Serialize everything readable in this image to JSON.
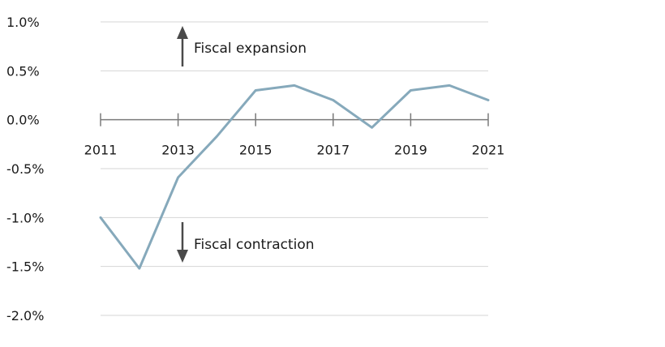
{
  "chart_data": {
    "type": "line",
    "x": [
      2011,
      2012,
      2013,
      2014,
      2015,
      2016,
      2017,
      2018,
      2019,
      2020,
      2021
    ],
    "series": [
      {
        "values": [
          -1.0,
          -1.52,
          -0.59,
          -0.17,
          0.3,
          0.35,
          0.2,
          -0.08,
          0.3,
          0.35,
          0.2
        ]
      }
    ],
    "x_tick_labels": [
      "2011",
      "2013",
      "2015",
      "2017",
      "2019",
      "2021"
    ],
    "x_tick_values": [
      2011,
      2013,
      2015,
      2017,
      2019,
      2021
    ],
    "y_tick_labels": [
      "1.0%",
      "0.5%",
      "0.0%",
      "-0.5%",
      "-1.0%",
      "-1.5%",
      "-2.0%"
    ],
    "y_tick_values": [
      1.0,
      0.5,
      0.0,
      -0.5,
      -1.0,
      -1.5,
      -2.0
    ],
    "ylim": [
      -2.0,
      1.0
    ],
    "xlim": [
      2011,
      2021
    ],
    "grid": true,
    "line_color": "#86a9bb",
    "annotations": [
      {
        "text": "Fiscal expansion",
        "direction": "up"
      },
      {
        "text": "Fiscal contraction",
        "direction": "down"
      }
    ],
    "title": "",
    "xlabel": "",
    "ylabel": ""
  }
}
